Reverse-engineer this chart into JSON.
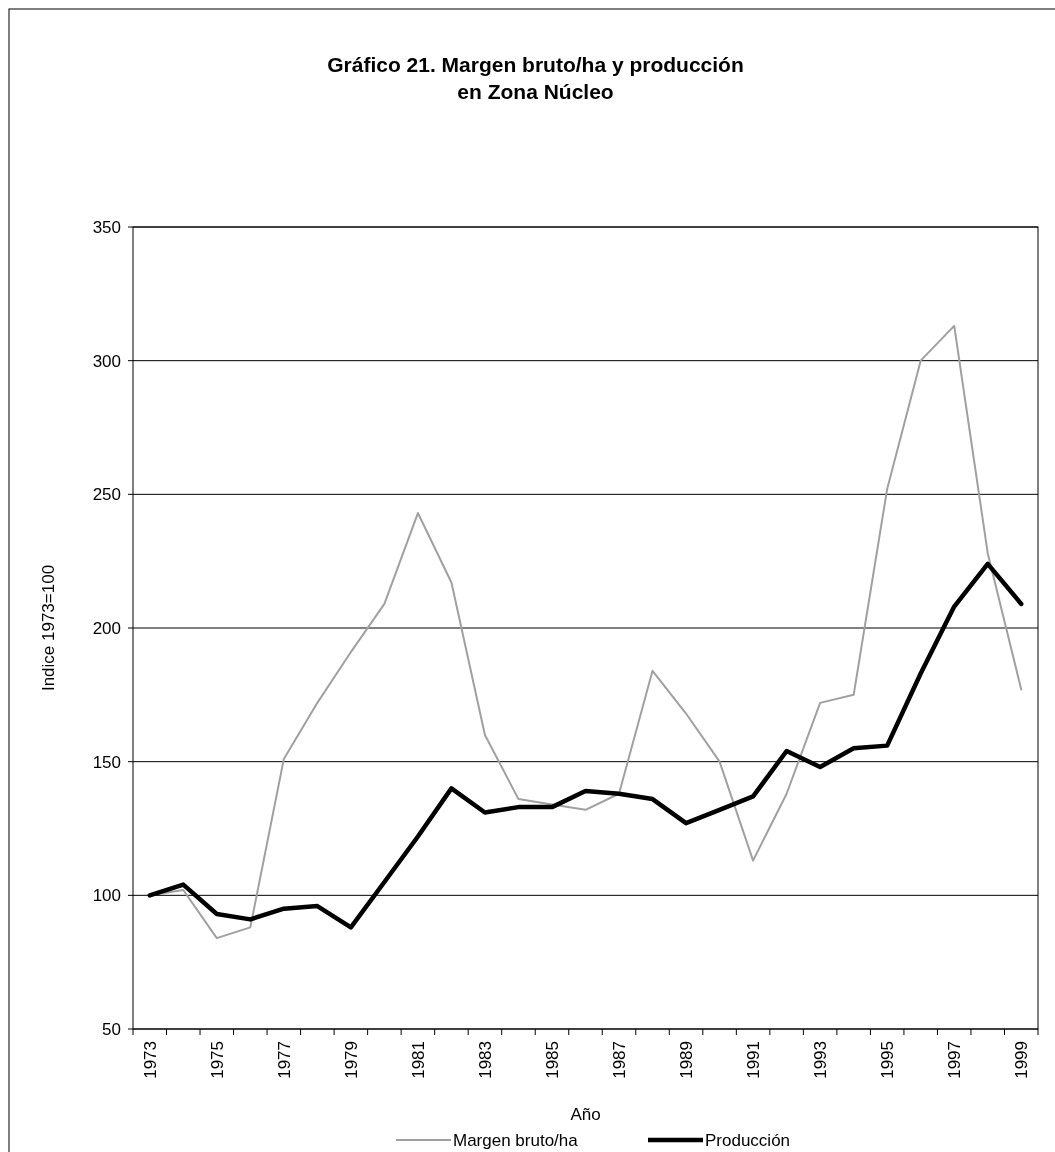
{
  "chart_data": {
    "type": "line",
    "title": "Gráfico 21.  Margen bruto/ha y producción\nen Zona Núcleo",
    "xlabel": "Año",
    "ylabel": "Indice 1973=100",
    "categories": [
      "1973",
      null,
      "1975",
      null,
      "1977",
      null,
      "1979",
      null,
      "1981",
      null,
      "1983",
      null,
      "1985",
      null,
      "1987",
      null,
      "1989",
      null,
      "1991",
      null,
      "1993",
      null,
      "1995",
      null,
      "1997",
      null,
      "1999"
    ],
    "series": [
      {
        "name": "Margen bruto/ha",
        "color": "#a0a0a0",
        "values": [
          100,
          102,
          84,
          88,
          151,
          172,
          191,
          209,
          243,
          217,
          160,
          136,
          134,
          132,
          138,
          184,
          168,
          150,
          113,
          138,
          172,
          175,
          252,
          300,
          313,
          228,
          177
        ]
      },
      {
        "name": "Producción",
        "color": "#000000",
        "values": [
          100,
          104,
          93,
          91,
          95,
          96,
          88,
          105,
          122,
          140,
          131,
          133,
          133,
          139,
          138,
          136,
          127,
          132,
          137,
          154,
          148,
          155,
          156,
          183,
          208,
          224,
          209
        ]
      }
    ],
    "ylim": [
      50,
      350
    ],
    "yticks": [
      50,
      100,
      150,
      200,
      250,
      300,
      350
    ],
    "grid": "y",
    "legend": "bottom",
    "marker": "none",
    "line_style": "solid"
  }
}
